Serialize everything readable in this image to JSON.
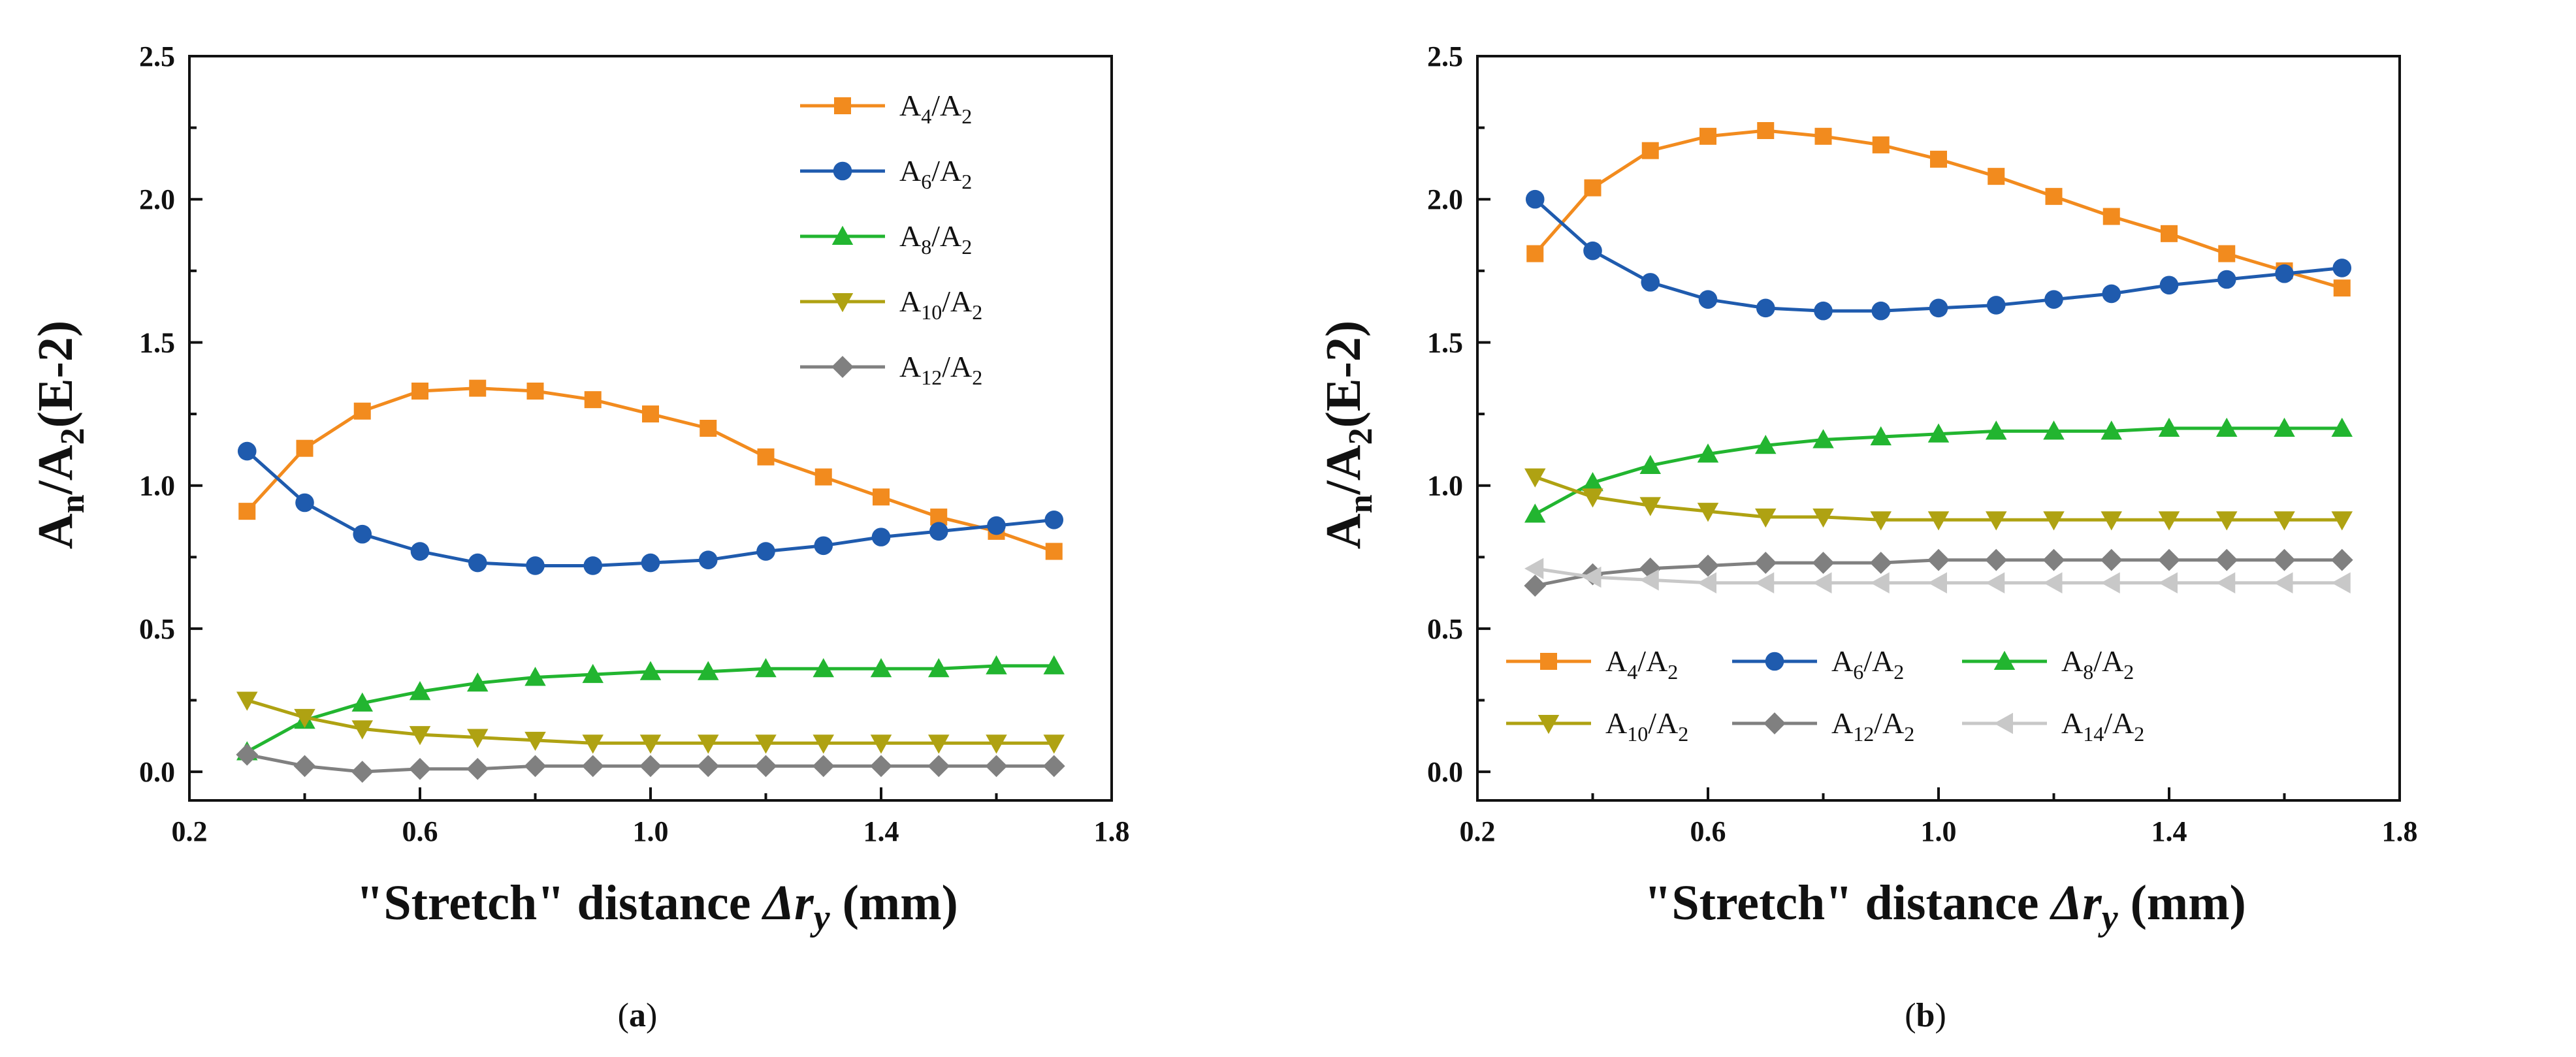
{
  "chart_data": [
    {
      "type": "line",
      "panel_label": "a",
      "caption_open": "(",
      "caption_close": ")",
      "xlabel_parts": [
        "\"Stretch\" distance ",
        "Δr",
        "y",
        " (mm)"
      ],
      "ylabel_parts": [
        "A",
        "n",
        "/A",
        "2",
        "(E-2)"
      ],
      "xlim": [
        0.2,
        1.8
      ],
      "ylim": [
        -0.1,
        2.5
      ],
      "xticks": [
        "0.2",
        "0.6",
        "1.0",
        "1.4",
        "1.8"
      ],
      "yticks": [
        "0.0",
        "0.5",
        "1.0",
        "1.5",
        "2.0",
        "2.5"
      ],
      "legend_position": "top-right",
      "x": [
        0.3,
        0.4,
        0.5,
        0.6,
        0.7,
        0.8,
        0.9,
        1.0,
        1.1,
        1.2,
        1.3,
        1.4,
        1.5,
        1.6,
        1.7
      ],
      "series": [
        {
          "name": "A4/A2",
          "label_main": "A",
          "label_sub1": "4",
          "label_mid": "/A",
          "label_sub2": "2",
          "color": "#F28B1E",
          "marker": "square",
          "values": [
            0.91,
            1.13,
            1.26,
            1.33,
            1.34,
            1.33,
            1.3,
            1.25,
            1.2,
            1.1,
            1.03,
            0.96,
            0.89,
            0.84,
            0.77
          ]
        },
        {
          "name": "A6/A2",
          "label_main": "A",
          "label_sub1": "6",
          "label_mid": "/A",
          "label_sub2": "2",
          "color": "#1F5BAE",
          "marker": "circle",
          "values": [
            1.12,
            0.94,
            0.83,
            0.77,
            0.73,
            0.72,
            0.72,
            0.73,
            0.74,
            0.77,
            0.79,
            0.82,
            0.84,
            0.86,
            0.88
          ]
        },
        {
          "name": "A8/A2",
          "label_main": "A",
          "label_sub1": "8",
          "label_mid": "/A",
          "label_sub2": "2",
          "color": "#22B530",
          "marker": "triangle-up",
          "values": [
            0.07,
            0.18,
            0.24,
            0.28,
            0.31,
            0.33,
            0.34,
            0.35,
            0.35,
            0.36,
            0.36,
            0.36,
            0.36,
            0.37,
            0.37
          ]
        },
        {
          "name": "A10/A2",
          "label_main": "A",
          "label_sub1": "10",
          "label_mid": "/A",
          "label_sub2": "2",
          "color": "#AFA212",
          "marker": "triangle-down",
          "values": [
            0.25,
            0.19,
            0.15,
            0.13,
            0.12,
            0.11,
            0.1,
            0.1,
            0.1,
            0.1,
            0.1,
            0.1,
            0.1,
            0.1,
            0.1
          ]
        },
        {
          "name": "A12/A2",
          "label_main": "A",
          "label_sub1": "12",
          "label_mid": "/A",
          "label_sub2": "2",
          "color": "#808080",
          "marker": "diamond",
          "values": [
            0.06,
            0.02,
            0.0,
            0.01,
            0.01,
            0.02,
            0.02,
            0.02,
            0.02,
            0.02,
            0.02,
            0.02,
            0.02,
            0.02,
            0.02
          ]
        }
      ]
    },
    {
      "type": "line",
      "panel_label": "b",
      "caption_open": "(",
      "caption_close": ")",
      "xlabel_parts": [
        "\"Stretch\" distance ",
        "Δr",
        "y",
        " (mm)"
      ],
      "ylabel_parts": [
        "A",
        "n",
        "/A",
        "2",
        "(E-2)"
      ],
      "xlim": [
        0.2,
        1.8
      ],
      "ylim": [
        -0.1,
        2.5
      ],
      "xticks": [
        "0.2",
        "0.6",
        "1.0",
        "1.4",
        "1.8"
      ],
      "yticks": [
        "0.0",
        "0.5",
        "1.0",
        "1.5",
        "2.0",
        "2.5"
      ],
      "legend_position": "bottom (two rows, three columns)",
      "x": [
        0.3,
        0.4,
        0.5,
        0.6,
        0.7,
        0.8,
        0.9,
        1.0,
        1.1,
        1.2,
        1.3,
        1.4,
        1.5,
        1.6,
        1.7
      ],
      "series": [
        {
          "name": "A4/A2",
          "label_main": "A",
          "label_sub1": "4",
          "label_mid": "/A",
          "label_sub2": "2",
          "color": "#F28B1E",
          "marker": "square",
          "values": [
            1.81,
            2.04,
            2.17,
            2.22,
            2.24,
            2.22,
            2.19,
            2.14,
            2.08,
            2.01,
            1.94,
            1.88,
            1.81,
            1.75,
            1.69
          ]
        },
        {
          "name": "A6/A2",
          "label_main": "A",
          "label_sub1": "6",
          "label_mid": "/A",
          "label_sub2": "2",
          "color": "#1F5BAE",
          "marker": "circle",
          "values": [
            2.0,
            1.82,
            1.71,
            1.65,
            1.62,
            1.61,
            1.61,
            1.62,
            1.63,
            1.65,
            1.67,
            1.7,
            1.72,
            1.74,
            1.76
          ]
        },
        {
          "name": "A8/A2",
          "label_main": "A",
          "label_sub1": "8",
          "label_mid": "/A",
          "label_sub2": "2",
          "color": "#22B530",
          "marker": "triangle-up",
          "values": [
            0.9,
            1.01,
            1.07,
            1.11,
            1.14,
            1.16,
            1.17,
            1.18,
            1.19,
            1.19,
            1.19,
            1.2,
            1.2,
            1.2,
            1.2
          ]
        },
        {
          "name": "A10/A2",
          "label_main": "A",
          "label_sub1": "10",
          "label_mid": "/A",
          "label_sub2": "2",
          "color": "#AFA212",
          "marker": "triangle-down",
          "values": [
            1.03,
            0.96,
            0.93,
            0.91,
            0.89,
            0.89,
            0.88,
            0.88,
            0.88,
            0.88,
            0.88,
            0.88,
            0.88,
            0.88,
            0.88
          ]
        },
        {
          "name": "A12/A2",
          "label_main": "A",
          "label_sub1": "12",
          "label_mid": "/A",
          "label_sub2": "2",
          "color": "#808080",
          "marker": "diamond",
          "values": [
            0.65,
            0.69,
            0.71,
            0.72,
            0.73,
            0.73,
            0.73,
            0.74,
            0.74,
            0.74,
            0.74,
            0.74,
            0.74,
            0.74,
            0.74
          ]
        },
        {
          "name": "A14/A2",
          "label_main": "A",
          "label_sub1": "14",
          "label_mid": "/A",
          "label_sub2": "2",
          "color": "#C8C8C8",
          "marker": "triangle-left",
          "values": [
            0.71,
            0.68,
            0.67,
            0.66,
            0.66,
            0.66,
            0.66,
            0.66,
            0.66,
            0.66,
            0.66,
            0.66,
            0.66,
            0.66,
            0.66
          ]
        }
      ]
    }
  ]
}
